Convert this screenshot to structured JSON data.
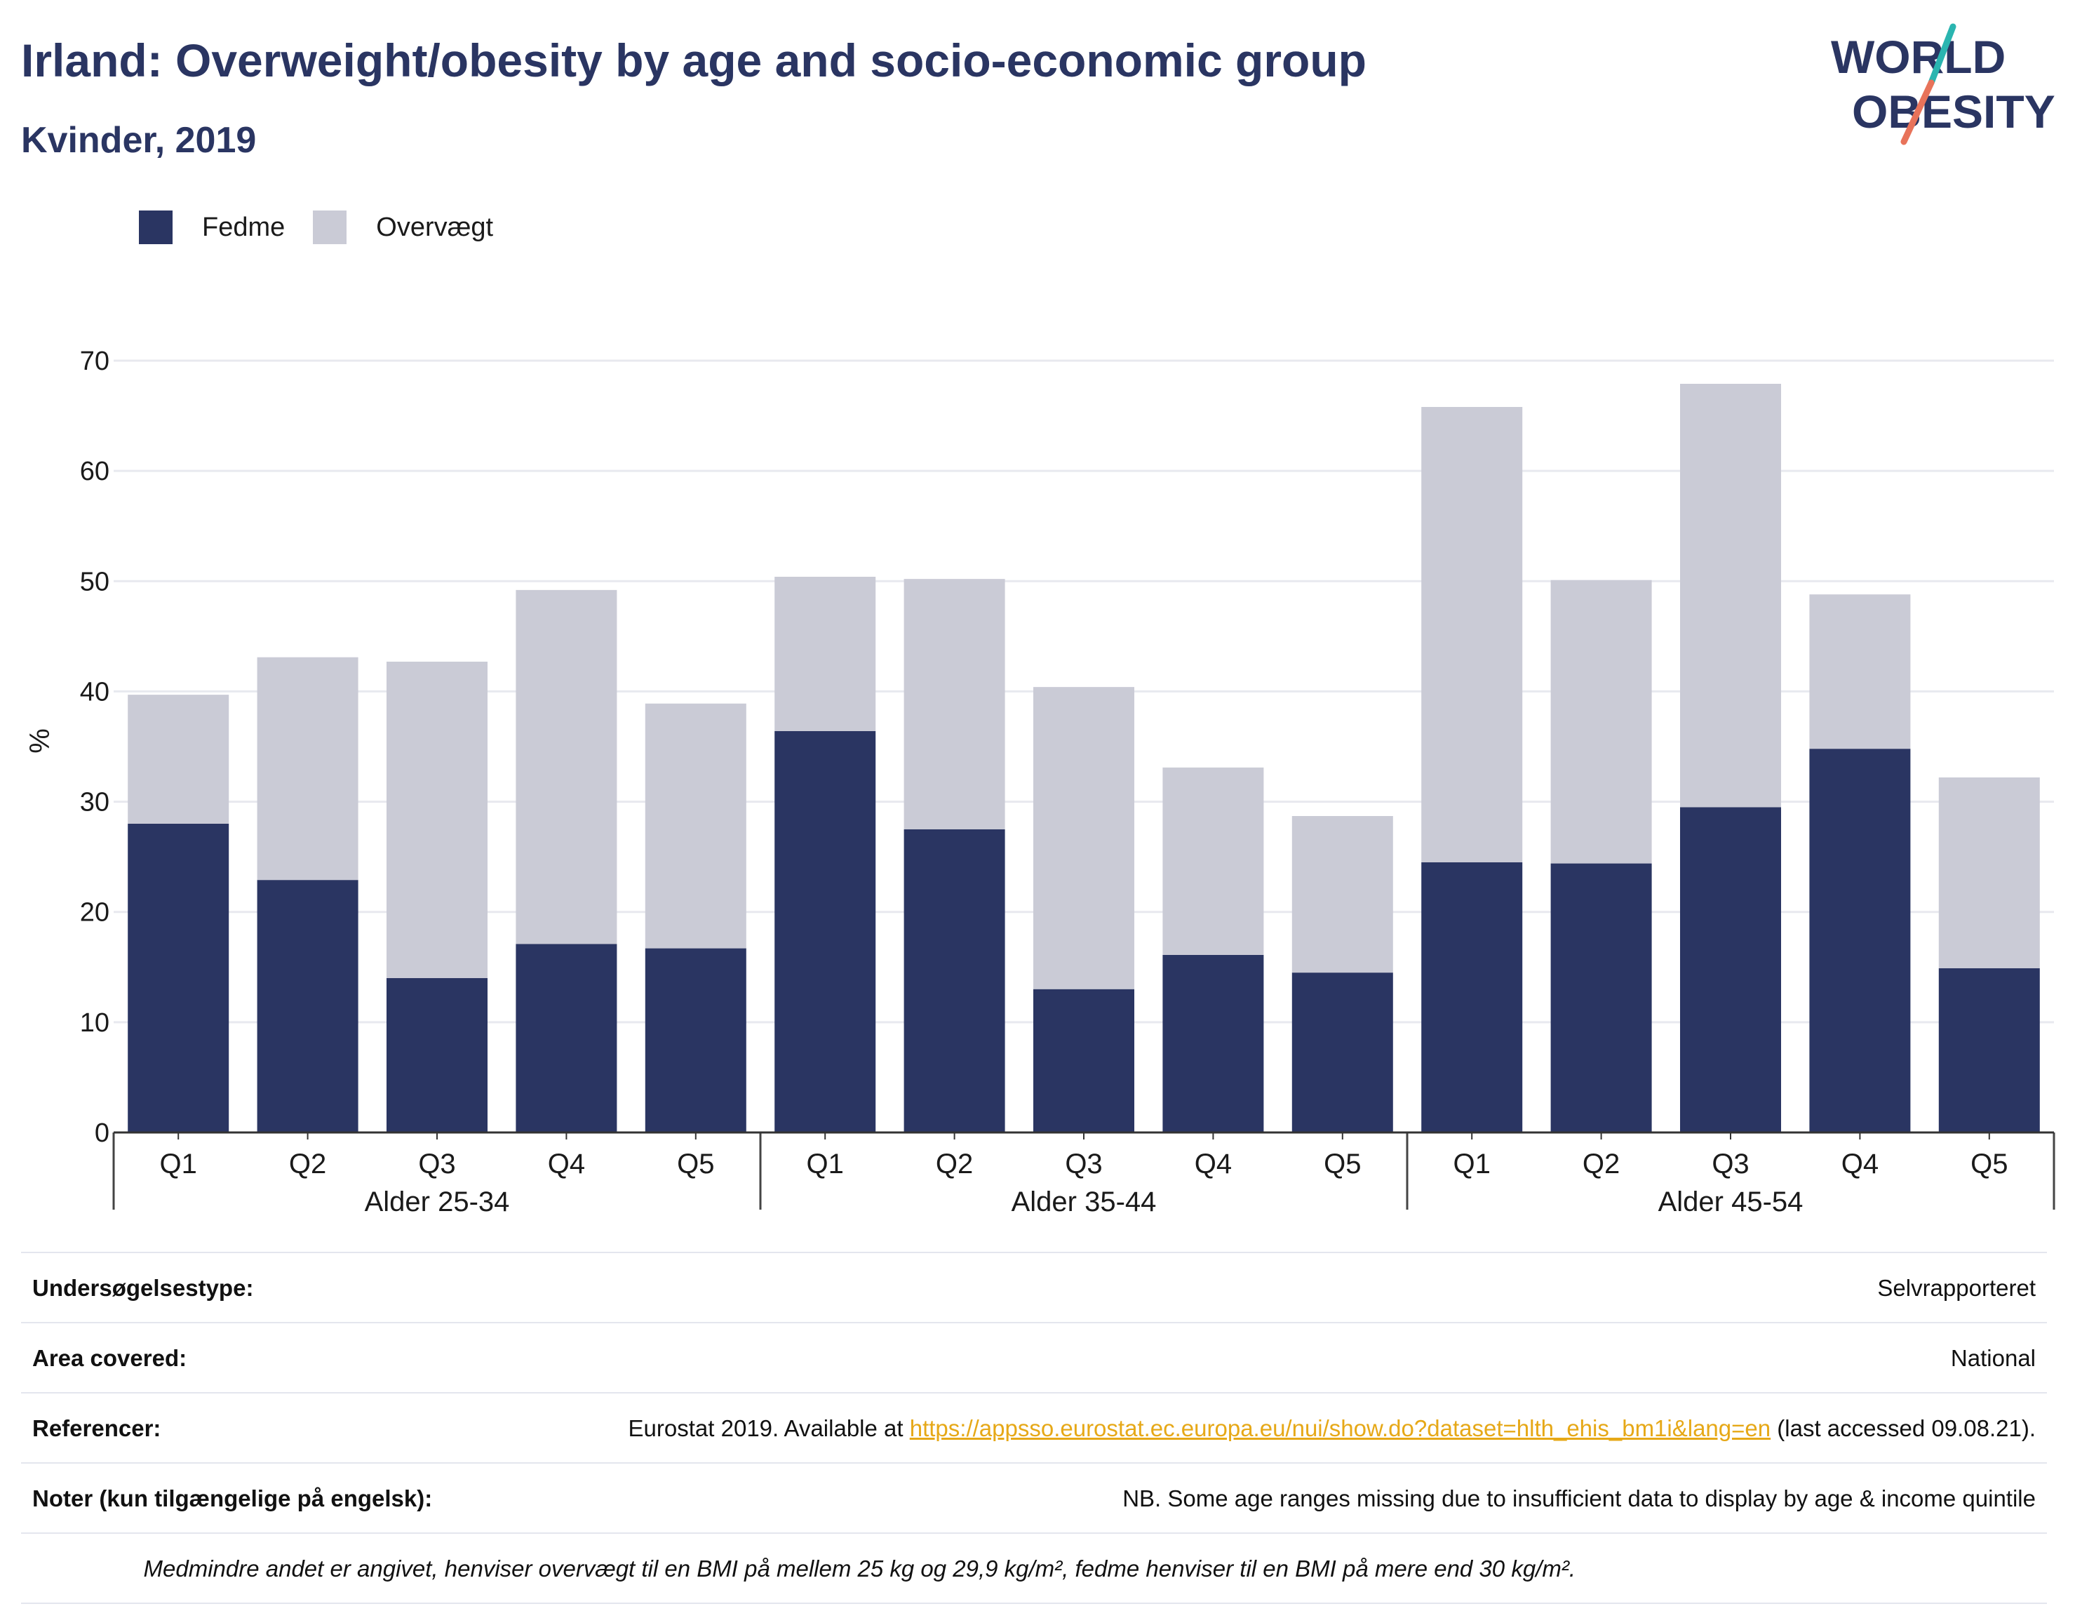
{
  "header": {
    "title": "Irland: Overweight/obesity by age and socio-economic group",
    "subtitle": "Kvinder, 2019"
  },
  "logo": {
    "line1": "WORLD",
    "line2": "OBESITY",
    "icon": "world-obesity-logo"
  },
  "colors": {
    "fedme": "#2a3562",
    "overvaegt": "#cacbd6",
    "text": "#2a3562",
    "grid": "#e8e9ef",
    "link": "#e6a817"
  },
  "chart_data": {
    "type": "bar",
    "stacked": true,
    "ylabel": "%",
    "ylim": [
      0,
      70
    ],
    "yticks": [
      0,
      10,
      20,
      30,
      40,
      50,
      60,
      70
    ],
    "grid": true,
    "legend_position": "top-left",
    "groups": [
      {
        "label": "Alder 25-34",
        "categories": [
          "Q1",
          "Q2",
          "Q3",
          "Q4",
          "Q5"
        ]
      },
      {
        "label": "Alder 35-44",
        "categories": [
          "Q1",
          "Q2",
          "Q3",
          "Q4",
          "Q5"
        ]
      },
      {
        "label": "Alder 45-54",
        "categories": [
          "Q1",
          "Q2",
          "Q3",
          "Q4",
          "Q5"
        ]
      }
    ],
    "series": [
      {
        "name": "Fedme",
        "values": [
          28.0,
          22.9,
          14.0,
          17.1,
          16.7,
          36.4,
          27.5,
          13.0,
          16.1,
          14.5,
          24.5,
          24.4,
          29.5,
          34.8,
          14.9
        ]
      },
      {
        "name": "Overvægt",
        "values": [
          11.7,
          20.2,
          28.7,
          32.1,
          22.2,
          14.0,
          22.7,
          27.4,
          17.0,
          14.2,
          41.3,
          25.7,
          38.4,
          14.0,
          17.3
        ]
      }
    ]
  },
  "meta": {
    "survey_label": "Undersøgelsestype:",
    "survey_value": "Selvrapporteret",
    "area_label": "Area covered:",
    "area_value": "National",
    "ref_label": "Referencer:",
    "ref_prefix": "Eurostat 2019. Available at ",
    "ref_link": "https://appsso.eurostat.ec.europa.eu/nui/show.do?dataset=hlth_ehis_bm1i&lang=en",
    "ref_suffix": " (last accessed 09.08.21).",
    "notes_label": "Noter (kun tilgængelige på engelsk):",
    "notes_value": "NB. Some age ranges missing due to insufficient data to display by age & income quintile",
    "footnote": "Medmindre andet er angivet, henviser overvægt til en BMI på mellem 25 kg og 29,9 kg/m², fedme henviser til en BMI på mere end 30 kg/m²."
  }
}
